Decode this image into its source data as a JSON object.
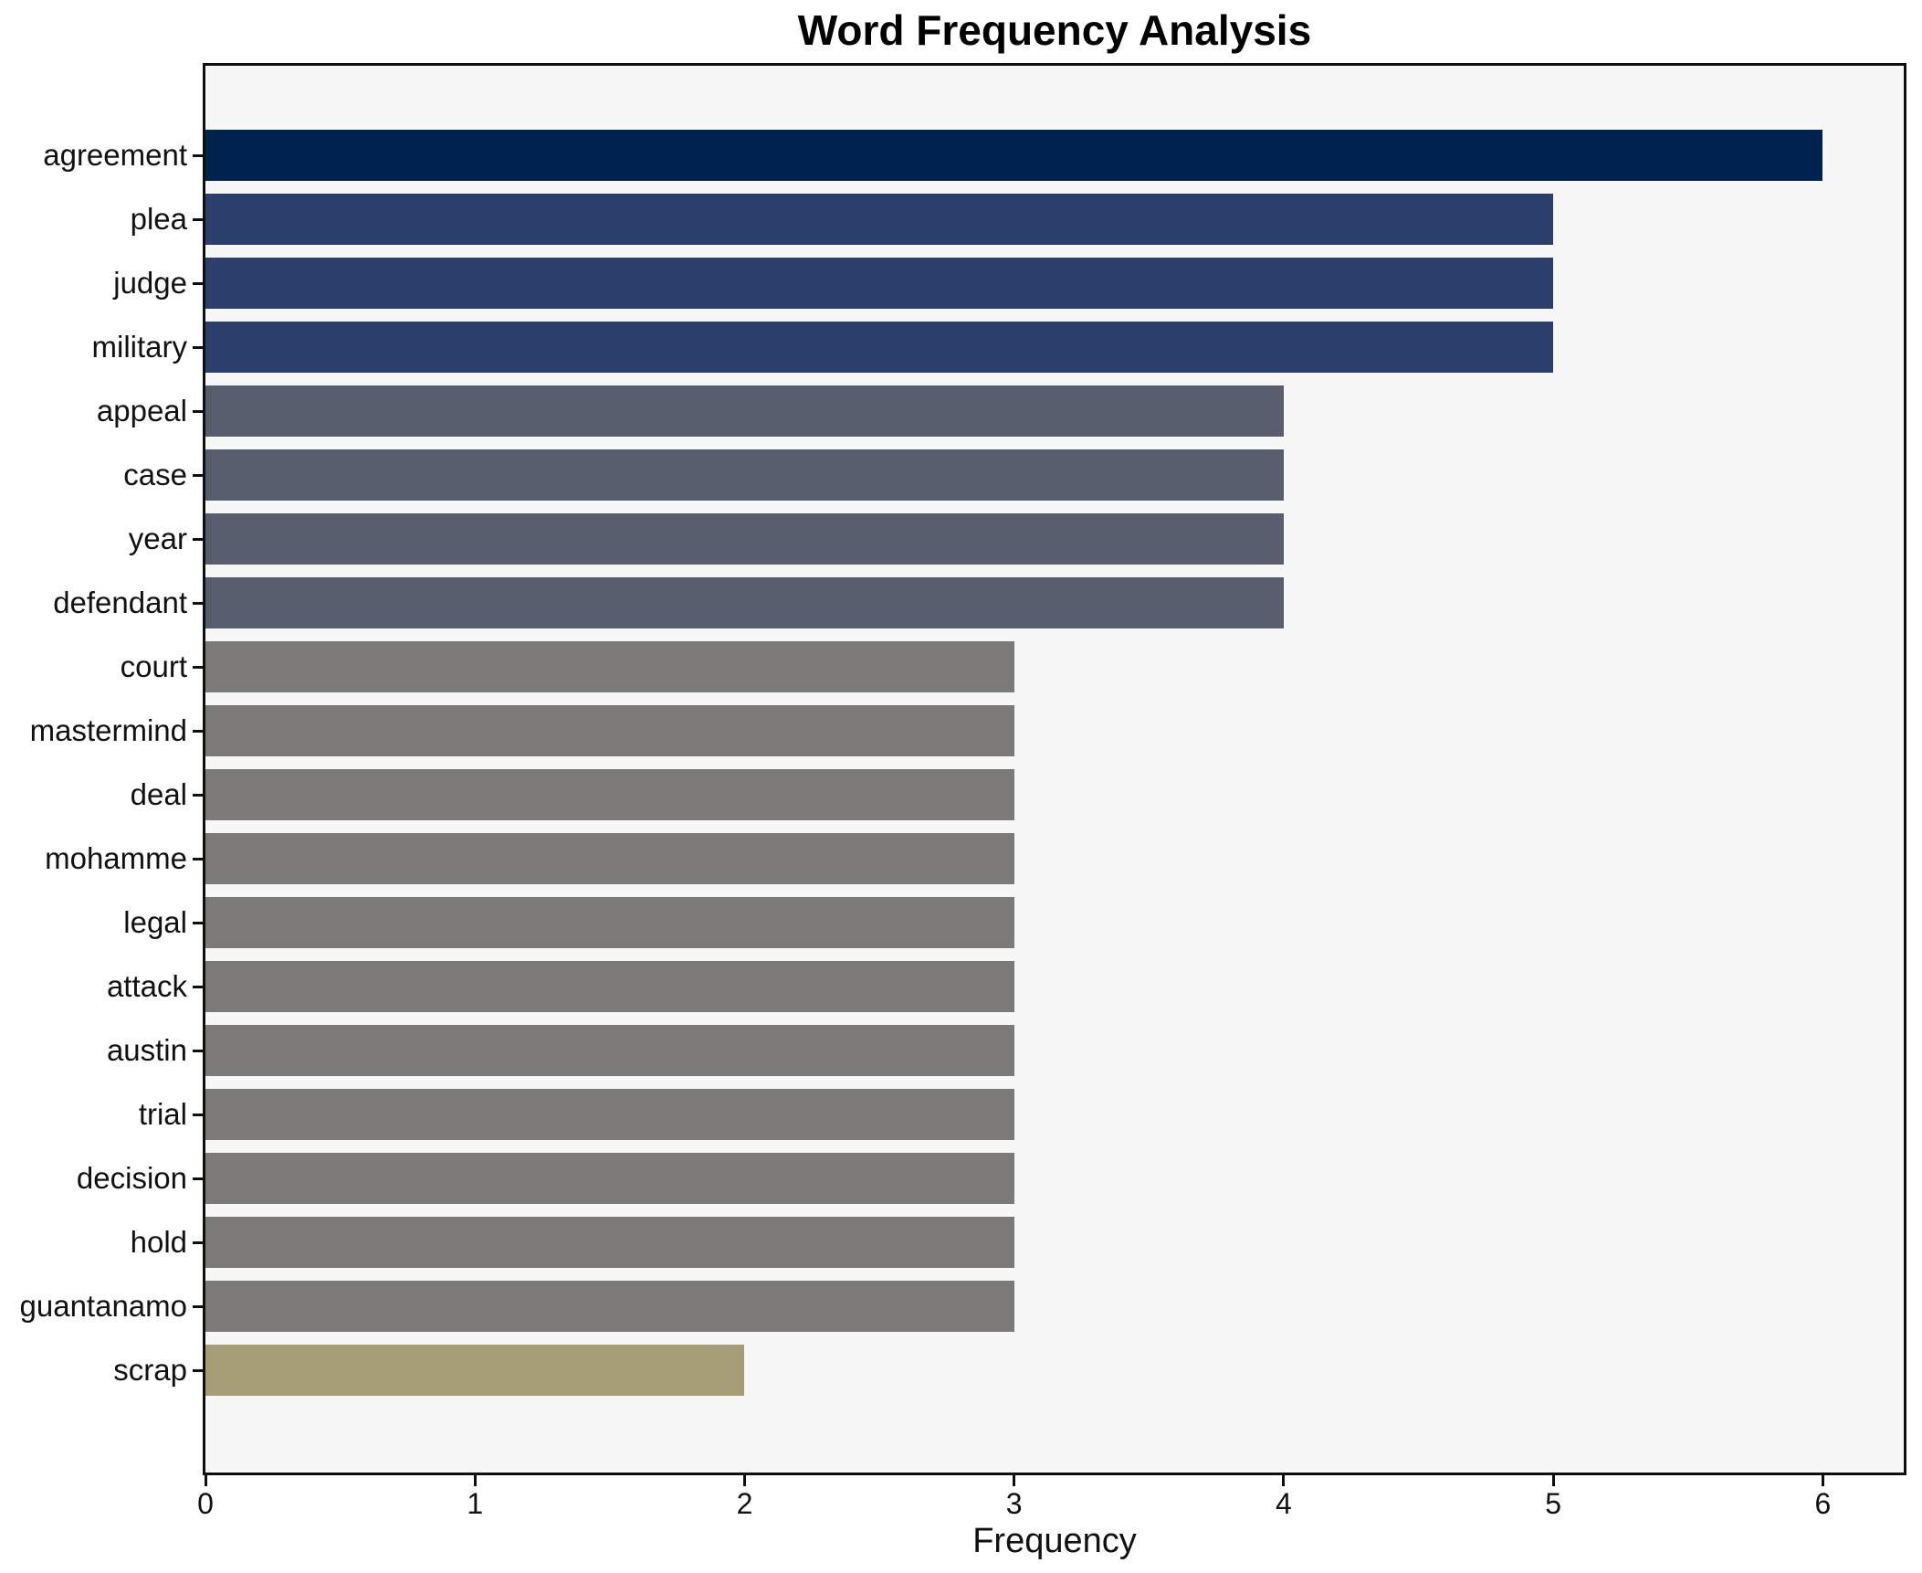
{
  "chart_data": {
    "type": "bar",
    "orientation": "horizontal",
    "title": "Word Frequency Analysis",
    "xlabel": "Frequency",
    "ylabel": "",
    "categories": [
      "agreement",
      "plea",
      "judge",
      "military",
      "appeal",
      "case",
      "year",
      "defendant",
      "court",
      "mastermind",
      "deal",
      "mohamme",
      "legal",
      "attack",
      "austin",
      "trial",
      "decision",
      "hold",
      "guantanamo",
      "scrap"
    ],
    "values": [
      6,
      5,
      5,
      5,
      4,
      4,
      4,
      4,
      3,
      3,
      3,
      3,
      3,
      3,
      3,
      3,
      3,
      3,
      3,
      2
    ],
    "bar_colors": [
      "#00224E",
      "#2C3F6C",
      "#2C3F6C",
      "#2C3F6C",
      "#575D6D",
      "#575D6D",
      "#575D6D",
      "#575D6D",
      "#7B7A78",
      "#7B7A78",
      "#7B7A78",
      "#7B7A78",
      "#7B7A78",
      "#7B7A78",
      "#7B7A78",
      "#7B7A78",
      "#7B7A78",
      "#7B7A78",
      "#7B7A78",
      "#A69C75"
    ],
    "xlim": [
      0,
      6.3
    ],
    "xticks": [
      0,
      1,
      2,
      3,
      4,
      5,
      6
    ],
    "grid": false,
    "legend_position": "none",
    "colormap": "cividis",
    "plot_background": "#F7F7F7",
    "figure_background": "#FFFFFF",
    "spine_color": "#0F0F0F",
    "text_color": "#111111"
  }
}
